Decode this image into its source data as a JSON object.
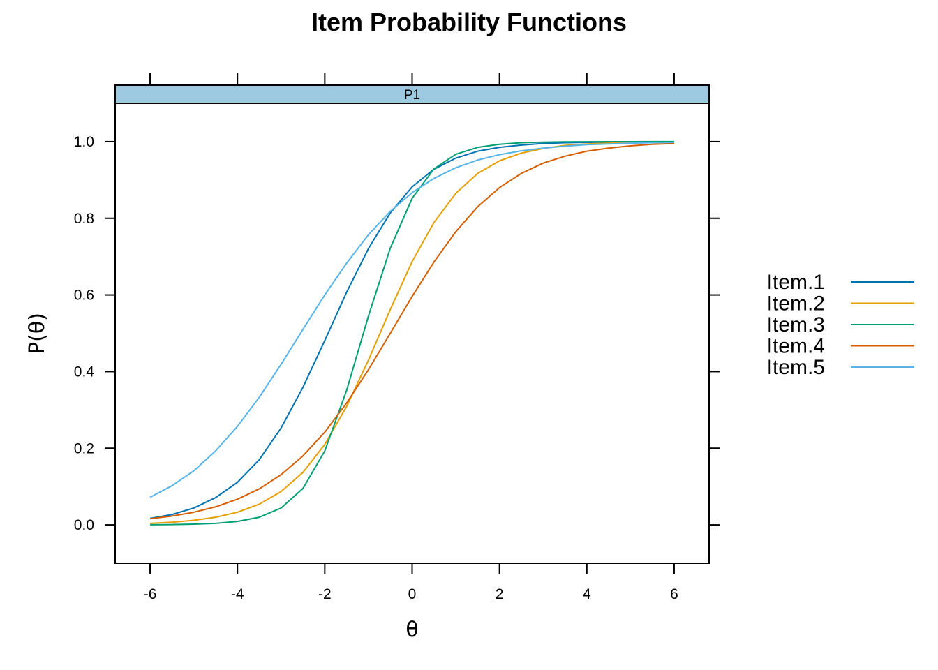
{
  "chart_data": {
    "type": "line",
    "title": "Item Probability Functions",
    "panel": "P1",
    "xlabel": "θ",
    "ylabel": "P(θ)",
    "xlim": [
      -6.8,
      6.8
    ],
    "ylim": [
      -0.1,
      1.1
    ],
    "xticks": [
      -6,
      -4,
      -2,
      0,
      2,
      4,
      6
    ],
    "xtick_labels": [
      "-6",
      "-4",
      "-2",
      "0",
      "2",
      "4",
      "6"
    ],
    "yticks": [
      0.0,
      0.2,
      0.4,
      0.6,
      0.8,
      1.0
    ],
    "ytick_labels": [
      "0.0",
      "0.2",
      "0.4",
      "0.6",
      "0.8",
      "1.0"
    ],
    "grid": false,
    "legend_position": "right",
    "x": [
      -6,
      -5.5,
      -5,
      -4.5,
      -4,
      -3.5,
      -3,
      -2.5,
      -2,
      -1.5,
      -1,
      -0.5,
      0,
      0.5,
      1,
      1.5,
      2,
      2.5,
      3,
      3.5,
      4,
      4.5,
      5,
      5.5,
      6
    ],
    "series": [
      {
        "name": "Item.1",
        "color": "#0072B2",
        "values": [
          0.017,
          0.027,
          0.044,
          0.071,
          0.111,
          0.17,
          0.253,
          0.359,
          0.481,
          0.607,
          0.721,
          0.814,
          0.882,
          0.928,
          0.957,
          0.975,
          0.985,
          0.991,
          0.995,
          0.997,
          0.998,
          0.999,
          0.999,
          0.9995,
          0.9997
        ]
      },
      {
        "name": "Item.2",
        "color": "#E69F00",
        "values": [
          0.004,
          0.007,
          0.012,
          0.02,
          0.033,
          0.054,
          0.087,
          0.137,
          0.21,
          0.309,
          0.43,
          0.562,
          0.687,
          0.789,
          0.865,
          0.917,
          0.95,
          0.97,
          0.982,
          0.99,
          0.994,
          0.996,
          0.998,
          0.9986,
          0.9992
        ]
      },
      {
        "name": "Item.3",
        "color": "#009E73",
        "values": [
          0.0004,
          0.0009,
          0.002,
          0.004,
          0.009,
          0.02,
          0.044,
          0.095,
          0.193,
          0.351,
          0.545,
          0.722,
          0.852,
          0.929,
          0.967,
          0.985,
          0.993,
          0.997,
          0.9986,
          0.9994,
          0.9997,
          0.9999,
          0.9999,
          1.0,
          1.0
        ]
      },
      {
        "name": "Item.4",
        "color": "#D55E00",
        "values": [
          0.016,
          0.023,
          0.033,
          0.047,
          0.067,
          0.094,
          0.131,
          0.18,
          0.242,
          0.318,
          0.405,
          0.5,
          0.596,
          0.686,
          0.765,
          0.83,
          0.88,
          0.917,
          0.944,
          0.962,
          0.975,
          0.983,
          0.989,
          0.993,
          0.995
        ]
      },
      {
        "name": "Item.5",
        "color": "#56B4E9",
        "values": [
          0.072,
          0.102,
          0.141,
          0.193,
          0.257,
          0.333,
          0.419,
          0.51,
          0.6,
          0.683,
          0.757,
          0.818,
          0.867,
          0.904,
          0.932,
          0.952,
          0.966,
          0.976,
          0.983,
          0.988,
          0.992,
          0.994,
          0.996,
          0.997,
          0.998
        ]
      }
    ]
  },
  "colors": {
    "strip_background": "#9ECAE1",
    "frame": "#000000"
  }
}
